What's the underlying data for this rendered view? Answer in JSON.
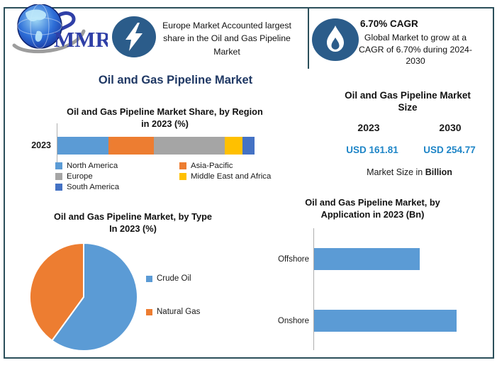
{
  "colors": {
    "frame_border": "#2b4f5a",
    "icon_circle": "#2b5c8a",
    "main_title_navy": "#1f3864",
    "usd_value_blue": "#1e85c7",
    "logo_blue": "#2f3fa7",
    "bar_blue": "#5b9bd5"
  },
  "header": {
    "logo": {
      "text": "MMR",
      "icon": "globe-logo-icon"
    },
    "europe_callout": {
      "icon": "lightning-icon",
      "text": "Europe Market Accounted largest share in the Oil and Gas Pipeline Market"
    },
    "cagr_callout": {
      "icon": "flame-icon",
      "title": "6.70% CAGR",
      "text": "Global Market to grow at a CAGR of 6.70% during 2024-2030"
    }
  },
  "main_title": "Oil and Gas Pipeline Market",
  "market_size": {
    "title_line1": "Oil and Gas Pipeline Market",
    "title_line2": "Size",
    "years": [
      "2023",
      "2030"
    ],
    "values": [
      "USD 161.81",
      "USD 254.77"
    ],
    "footnote_prefix": "Market Size in ",
    "footnote_bold": "Billion"
  },
  "chart_data": [
    {
      "type": "bar",
      "subtype": "stacked-horizontal",
      "title": "Oil and Gas Pipeline Market Share, by Region in 2023 (%)",
      "title_lines": [
        "Oil and Gas Pipeline Market Share, by Region",
        "in 2023 (%)"
      ],
      "categories": [
        "2023"
      ],
      "series": [
        {
          "name": "North America",
          "values": [
            26
          ],
          "color": "#5b9bd5"
        },
        {
          "name": "Asia-Pacific",
          "values": [
            23
          ],
          "color": "#ed7d31"
        },
        {
          "name": "Europe",
          "values": [
            36
          ],
          "color": "#a5a5a5"
        },
        {
          "name": "Middle East and Africa",
          "values": [
            9
          ],
          "color": "#ffc000"
        },
        {
          "name": "South America",
          "values": [
            6
          ],
          "color": "#4472c4"
        }
      ],
      "xlim": [
        0,
        100
      ],
      "grid": false,
      "legend_position": "bottom"
    },
    {
      "type": "pie",
      "title": "Oil and Gas Pipeline Market, by Type In 2023 (%)",
      "title_lines": [
        "Oil and Gas Pipeline Market, by Type",
        "In 2023 (%)"
      ],
      "labels": [
        "Crude Oil",
        "Natural Gas"
      ],
      "values": [
        60,
        40
      ],
      "colors": [
        "#5b9bd5",
        "#ed7d31"
      ],
      "start_angle_deg": 0,
      "direction": "clockwise",
      "legend_position": "right"
    },
    {
      "type": "bar",
      "subtype": "horizontal",
      "title": "Oil and Gas Pipeline Market, by Application in 2023 (Bn)",
      "title_lines": [
        "Oil and Gas Pipeline Market, by",
        "Application in 2023 (Bn)"
      ],
      "categories": [
        "Offshore",
        "Onshore"
      ],
      "values": [
        69,
        93
      ],
      "color": "#5b9bd5",
      "grid": false
    }
  ]
}
